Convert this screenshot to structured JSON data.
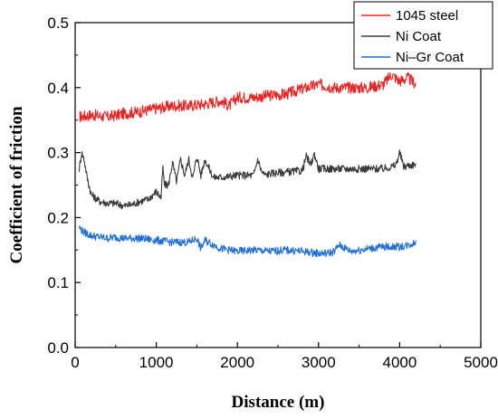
{
  "chart_data": {
    "type": "line",
    "xlabel": "Distance (m)",
    "ylabel": "Coefficient of friction",
    "xlim": [
      0,
      5000
    ],
    "ylim": [
      0,
      0.5
    ],
    "xticks": [
      0,
      1000,
      2000,
      3000,
      4000,
      5000
    ],
    "yticks": [
      0.0,
      0.1,
      0.2,
      0.3,
      0.4,
      0.5
    ],
    "xtick_labels": [
      "0",
      "1000",
      "2000",
      "3000",
      "4000",
      "5000"
    ],
    "ytick_labels": [
      "0.0",
      "0.1",
      "0.2",
      "0.3",
      "0.4",
      "0.5"
    ],
    "grid": false,
    "legend_position": "top-right",
    "series": [
      {
        "name": "1045 steel",
        "color": "#ee2222",
        "x": [
          50,
          200,
          400,
          600,
          800,
          1000,
          1200,
          1400,
          1600,
          1800,
          1900,
          2000,
          2200,
          2400,
          2600,
          2800,
          3000,
          3200,
          3400,
          3600,
          3800,
          3900,
          4000,
          4100,
          4200
        ],
        "y": [
          0.355,
          0.358,
          0.355,
          0.36,
          0.363,
          0.368,
          0.372,
          0.372,
          0.375,
          0.38,
          0.372,
          0.385,
          0.385,
          0.388,
          0.39,
          0.398,
          0.405,
          0.4,
          0.4,
          0.4,
          0.405,
          0.42,
          0.41,
          0.415,
          0.405
        ]
      },
      {
        "name": "Ni Coat",
        "color": "#3a3a3a",
        "x": [
          50,
          80,
          110,
          150,
          200,
          300,
          400,
          500,
          600,
          700,
          800,
          900,
          1000,
          1060,
          1080,
          1100,
          1150,
          1200,
          1250,
          1300,
          1350,
          1400,
          1450,
          1500,
          1550,
          1600,
          1700,
          1800,
          2000,
          2200,
          2250,
          2300,
          2350,
          2400,
          2600,
          2800,
          2850,
          2900,
          2950,
          3000,
          3200,
          3400,
          3600,
          3800,
          3950,
          4000,
          4050,
          4100,
          4200
        ],
        "y": [
          0.275,
          0.3,
          0.29,
          0.26,
          0.235,
          0.225,
          0.222,
          0.222,
          0.218,
          0.22,
          0.225,
          0.228,
          0.24,
          0.23,
          0.278,
          0.25,
          0.25,
          0.285,
          0.255,
          0.29,
          0.265,
          0.29,
          0.26,
          0.295,
          0.265,
          0.29,
          0.262,
          0.262,
          0.265,
          0.265,
          0.29,
          0.27,
          0.265,
          0.268,
          0.27,
          0.272,
          0.295,
          0.28,
          0.298,
          0.275,
          0.275,
          0.275,
          0.275,
          0.275,
          0.28,
          0.3,
          0.278,
          0.28,
          0.282
        ]
      },
      {
        "name": "Ni–Gr Coat",
        "color": "#1f6fd8",
        "x": [
          50,
          100,
          200,
          300,
          400,
          500,
          600,
          800,
          1000,
          1200,
          1400,
          1500,
          1550,
          1600,
          1800,
          2000,
          2200,
          2400,
          2600,
          2800,
          3000,
          3100,
          3200,
          3250,
          3400,
          3600,
          3800,
          4000,
          4100,
          4200
        ],
        "y": [
          0.185,
          0.178,
          0.172,
          0.17,
          0.168,
          0.17,
          0.168,
          0.168,
          0.165,
          0.162,
          0.162,
          0.168,
          0.152,
          0.165,
          0.152,
          0.148,
          0.15,
          0.148,
          0.15,
          0.148,
          0.145,
          0.145,
          0.148,
          0.158,
          0.148,
          0.152,
          0.155,
          0.155,
          0.157,
          0.162
        ]
      }
    ]
  }
}
